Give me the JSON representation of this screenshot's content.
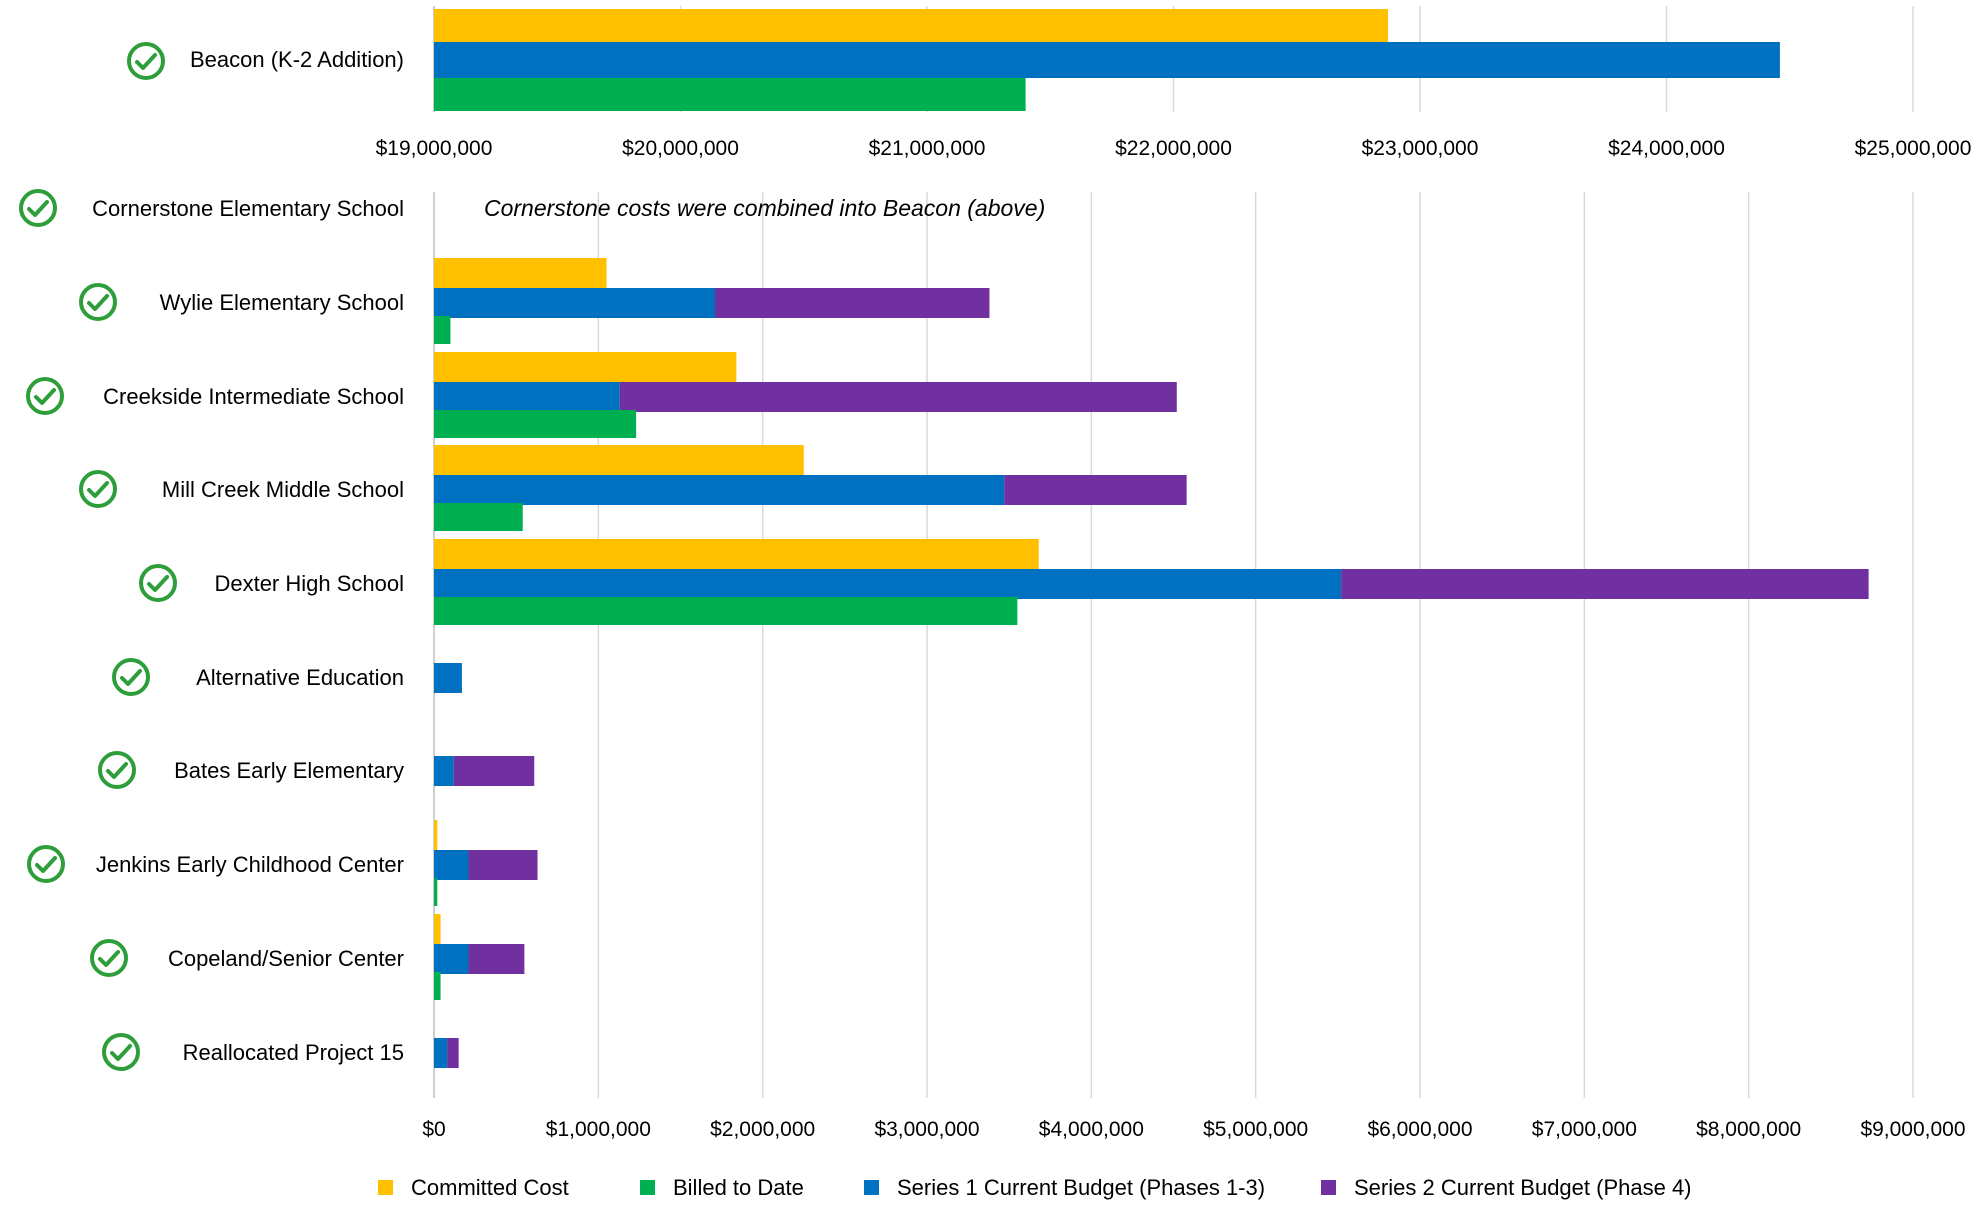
{
  "chart_data": [
    {
      "type": "bar",
      "orientation": "horizontal",
      "categories": [
        "Beacon (K-2 Addition)"
      ],
      "series": [
        {
          "name": "Committed Cost",
          "values": [
            22870000
          ]
        },
        {
          "name": "Series 1 Current Budget (Phases 1-3)",
          "values": [
            24460000
          ]
        },
        {
          "name": "Billed to Date",
          "values": [
            21400000
          ]
        }
      ],
      "xlim": [
        19000000,
        25000000
      ],
      "tick_labels": [
        "$19,000,000",
        "$20,000,000",
        "$21,000,000",
        "$22,000,000",
        "$23,000,000",
        "$24,000,000",
        "$25,000,000"
      ],
      "grid": true
    },
    {
      "type": "bar",
      "orientation": "horizontal",
      "stacked_budget": true,
      "categories": [
        "Cornerstone Elementary School",
        "Wylie Elementary School",
        "Creekside Intermediate School",
        "Mill Creek Middle School",
        "Dexter High School",
        "Alternative Education",
        "Bates Early Elementary",
        "Jenkins Early Childhood Center",
        "Copeland/Senior Center",
        "Reallocated Project 15"
      ],
      "annotation": {
        "italic": "Cornerstone",
        "text": " costs were combined into Beacon (above)"
      },
      "series": [
        {
          "name": "Committed Cost",
          "values": [
            0,
            1050000,
            1840000,
            2250000,
            3680000,
            0,
            0,
            20000,
            40000,
            0
          ]
        },
        {
          "name": "Series 1 Current Budget (Phases 1-3)",
          "values": [
            0,
            1710000,
            1130000,
            3470000,
            5520000,
            170000,
            120000,
            210000,
            210000,
            80000
          ]
        },
        {
          "name": "Series 2 Current Budget (Phase 4)",
          "values": [
            0,
            1670000,
            3390000,
            1110000,
            3210000,
            0,
            490000,
            420000,
            340000,
            70000
          ]
        },
        {
          "name": "Billed to Date",
          "values": [
            0,
            100000,
            1230000,
            540000,
            3550000,
            0,
            0,
            20000,
            40000,
            0
          ]
        }
      ],
      "xlim": [
        0,
        9000000
      ],
      "tick_labels": [
        "$0",
        "$1,000,000",
        "$2,000,000",
        "$3,000,000",
        "$4,000,000",
        "$5,000,000",
        "$6,000,000",
        "$7,000,000",
        "$8,000,000",
        "$9,000,000"
      ],
      "grid": true
    }
  ],
  "legend": {
    "placement": "bottom",
    "items": [
      {
        "label": "Committed Cost",
        "color": "#FFC000"
      },
      {
        "label": "Billed to Date",
        "color": "#00B050"
      },
      {
        "label": "Series 1 Current Budget (Phases 1-3)",
        "color": "#0070C0"
      },
      {
        "label": "Series 2 Current Budget (Phase 4)",
        "color": "#7030A0"
      }
    ]
  },
  "colors": {
    "committed": "#FFC000",
    "billed": "#00B050",
    "series1": "#0070C0",
    "series2": "#7030A0",
    "check": "#2E9E3A",
    "grid": "#D9D9D9"
  },
  "icons": {
    "status": "check-circle-icon"
  }
}
